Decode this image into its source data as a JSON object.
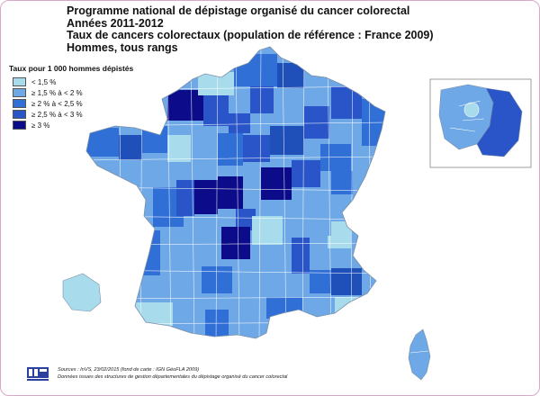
{
  "title": {
    "line1": "Programme national de dépistage organisé du cancer colorectal",
    "line2": "Années 2011-2012",
    "line3": "Taux de cancers colorectaux (population de référence : France 2009)",
    "line4": "Hommes, tous rangs"
  },
  "legend": {
    "title": "Taux pour 1 000 hommes dépistés",
    "items": [
      {
        "label": "< 1,5 %",
        "color": "#a8dcec"
      },
      {
        "label": "≥ 1,5 % à < 2 %",
        "color": "#6fa8e6"
      },
      {
        "label": "≥ 2 % à < 2,5 %",
        "color": "#2f6fd6"
      },
      {
        "label": "≥ 2,5 % à < 3 %",
        "color": "#2a55c8"
      },
      {
        "label": "≥ 3 %",
        "color": "#0c0c8a"
      }
    ]
  },
  "source": {
    "line1": "Sources : InVS, 23/02/2015 (fond de carte : IGN GéoFLA 2009)",
    "line2": "Données issues des structures de gestion départementales du dépistage organisé du cancer colorectal"
  }
}
